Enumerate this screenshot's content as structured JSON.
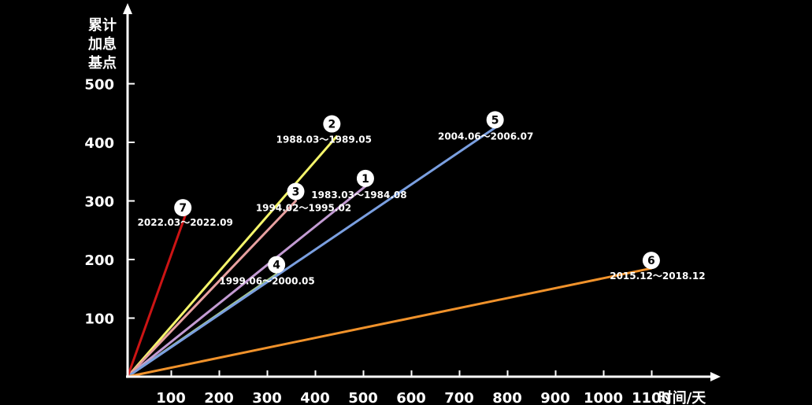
{
  "chart_data": {
    "type": "line",
    "xlabel": "时间/天",
    "ylabel_lines": [
      "累计",
      "加息",
      "基点"
    ],
    "x_ticks": [
      100,
      200,
      300,
      400,
      500,
      600,
      700,
      800,
      900,
      1000,
      1100
    ],
    "y_ticks": [
      100,
      200,
      300,
      400,
      500
    ],
    "grid": false,
    "legend": "none",
    "series": [
      {
        "name": "1",
        "period": "1983.03～1984.08",
        "color": "#c39bd3",
        "x": [
          0,
          495
        ],
        "y": [
          0,
          325
        ]
      },
      {
        "name": "2",
        "period": "1988.03～1989.05",
        "color": "#f5f56b",
        "x": [
          0,
          435
        ],
        "y": [
          0,
          410
        ]
      },
      {
        "name": "3",
        "period": "1994.02～1995.02",
        "color": "#e8a1a1",
        "x": [
          0,
          350
        ],
        "y": [
          0,
          300
        ]
      },
      {
        "name": "4",
        "period": "1999.06～2000.05",
        "color": "#a8cc8c",
        "x": [
          0,
          310
        ],
        "y": [
          0,
          175
        ]
      },
      {
        "name": "5",
        "period": "2004.06～2006.07",
        "color": "#7a9fe0",
        "x": [
          0,
          765
        ],
        "y": [
          0,
          425
        ]
      },
      {
        "name": "6",
        "period": "2015.12～2018.12",
        "color": "#f0922b",
        "x": [
          0,
          1090
        ],
        "y": [
          0,
          185
        ]
      },
      {
        "name": "7",
        "period": "2022.03～2022.09",
        "color": "#cc1414",
        "x": [
          0,
          120
        ],
        "y": [
          0,
          275
        ]
      }
    ]
  }
}
